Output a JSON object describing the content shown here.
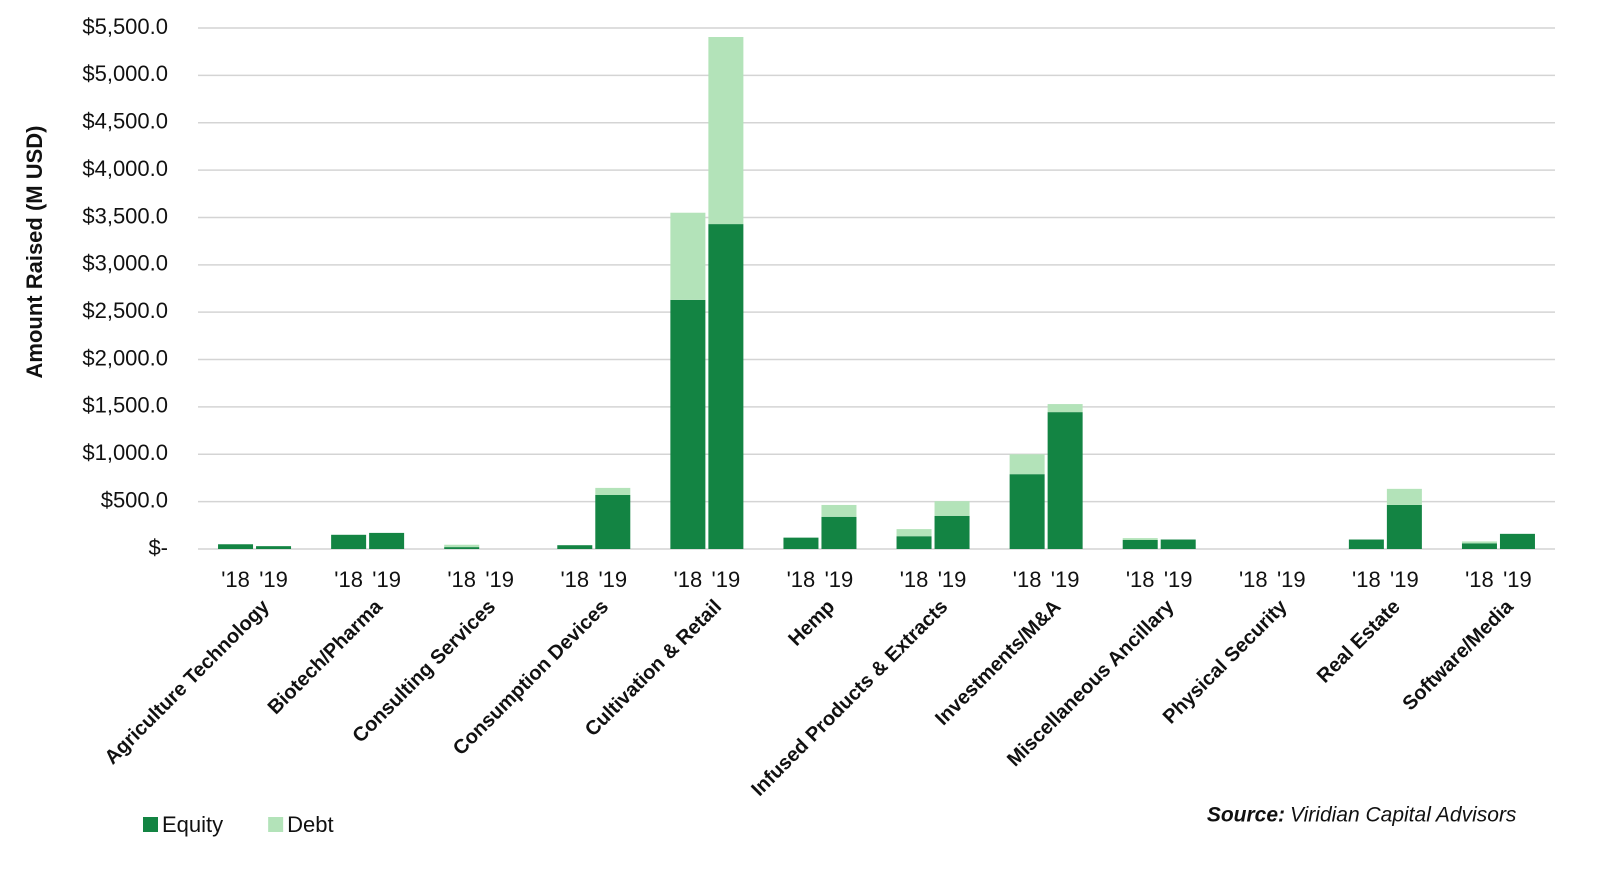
{
  "chart_data": {
    "type": "bar",
    "stacked": true,
    "y_axis_label": "Amount Raised (M USD)",
    "source_label": "Source:",
    "source": "Viridian Capital Advisors",
    "categories": [
      "Agriculture Technology",
      "Biotech/Pharma",
      "Consulting Services",
      "Consumption Devices",
      "Cultivation & Retail",
      "Hemp",
      "Infused Products & Extracts",
      "Investments/M&A",
      "Miscellaneous Ancillary",
      "Physical Security",
      "Real Estate",
      "Software/Media"
    ],
    "subcategories": [
      "'18",
      "'19"
    ],
    "series": [
      {
        "name": "Equity",
        "color": "#138443",
        "values": [
          [
            50,
            30
          ],
          [
            150,
            170
          ],
          [
            20,
            0
          ],
          [
            40,
            570
          ],
          [
            2630,
            3430
          ],
          [
            120,
            340
          ],
          [
            135,
            350
          ],
          [
            790,
            1445
          ],
          [
            95,
            100
          ],
          [
            0,
            0
          ],
          [
            100,
            465
          ],
          [
            60,
            160
          ]
        ]
      },
      {
        "name": "Debt",
        "color": "#b3e3b9",
        "values": [
          [
            0,
            0
          ],
          [
            0,
            0
          ],
          [
            25,
            0
          ],
          [
            0,
            75
          ],
          [
            920,
            1975
          ],
          [
            0,
            125
          ],
          [
            75,
            155
          ],
          [
            210,
            85
          ],
          [
            20,
            0
          ],
          [
            0,
            0
          ],
          [
            0,
            170
          ],
          [
            20,
            0
          ]
        ]
      }
    ],
    "ylim": [
      0,
      5500
    ],
    "yticks": [
      {
        "value": 0,
        "label": "$-"
      },
      {
        "value": 500,
        "label": "$500.0"
      },
      {
        "value": 1000,
        "label": "$1,000.0"
      },
      {
        "value": 1500,
        "label": "$1,500.0"
      },
      {
        "value": 2000,
        "label": "$2,000.0"
      },
      {
        "value": 2500,
        "label": "$2,500.0"
      },
      {
        "value": 3000,
        "label": "$3,000.0"
      },
      {
        "value": 3500,
        "label": "$3,500.0"
      },
      {
        "value": 4000,
        "label": "$4,000.0"
      },
      {
        "value": 4500,
        "label": "$4,500.0"
      },
      {
        "value": 5000,
        "label": "$5,000.0"
      },
      {
        "value": 5500,
        "label": "$5,500.0"
      }
    ],
    "grid": true,
    "legend": "bottom-left"
  }
}
